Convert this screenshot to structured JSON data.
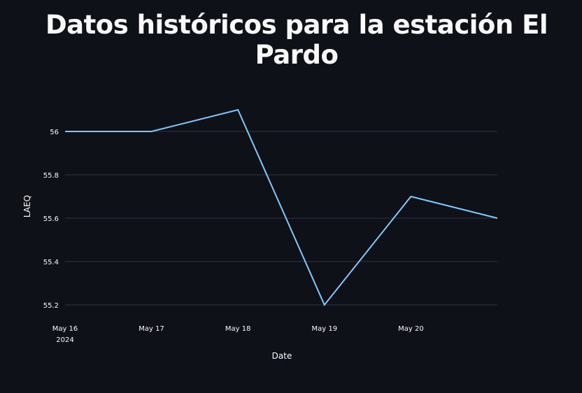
{
  "page": {
    "title": "Datos históricos para la estación El Pardo"
  },
  "chart_data": {
    "type": "line",
    "title": "",
    "xlabel": "Date",
    "ylabel": "LAEQ",
    "x": [
      "2024-05-16",
      "2024-05-17",
      "2024-05-18",
      "2024-05-19",
      "2024-05-20",
      "2024-05-21"
    ],
    "series": [
      {
        "values": [
          56.0,
          56.0,
          56.1,
          55.2,
          55.7,
          55.6
        ]
      }
    ],
    "x_ticks": [
      {
        "date": "2024-05-16",
        "label": "May 16",
        "sublabel": "2024"
      },
      {
        "date": "2024-05-17",
        "label": "May 17",
        "sublabel": ""
      },
      {
        "date": "2024-05-18",
        "label": "May 18",
        "sublabel": ""
      },
      {
        "date": "2024-05-19",
        "label": "May 19",
        "sublabel": ""
      },
      {
        "date": "2024-05-20",
        "label": "May 20",
        "sublabel": ""
      }
    ],
    "y_ticks": [
      {
        "value": 55.2,
        "label": "55.2"
      },
      {
        "value": 55.4,
        "label": "55.4"
      },
      {
        "value": 55.6,
        "label": "55.6"
      },
      {
        "value": 55.8,
        "label": "55.8"
      },
      {
        "value": 56.0,
        "label": "56"
      }
    ],
    "xlim": [
      "2024-05-16",
      "2024-05-21"
    ],
    "ylim": [
      55.2,
      56.0
    ],
    "grid": "horizontal",
    "line_color": "#83c9ff",
    "grid_color": "#31333f",
    "background": "#0e1117"
  }
}
